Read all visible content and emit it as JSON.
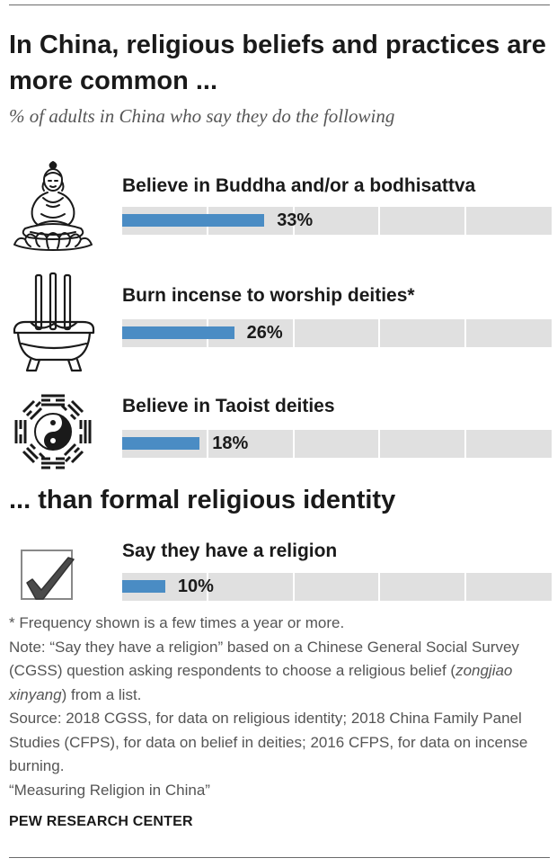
{
  "title": "In China, religious beliefs and practices are more common ...",
  "subtitle": "% of adults in China who say they do the following",
  "section_heading": "... than formal religious identity",
  "icons": [
    "buddha-icon",
    "incense-burner-icon",
    "yin-yang-bagua-icon",
    "checkmark-icon"
  ],
  "colors": {
    "bar": "#4a8cc4",
    "track": "#e0e0e0",
    "text": "#1a1a1a",
    "muted": "#555555"
  },
  "chart_data": {
    "type": "bar",
    "orientation": "horizontal",
    "categories": [
      "Believe in Buddha and/or a bodhisattva",
      "Burn incense to worship deities*",
      "Believe in Taoist deities",
      "Say they have a religion"
    ],
    "values": [
      33,
      26,
      18,
      10
    ],
    "value_labels": [
      "33%",
      "26%",
      "18%",
      "10%"
    ],
    "xlim": [
      0,
      100
    ],
    "grid": true,
    "title": "In China, religious beliefs and practices are more common ...",
    "subtitle": "% of adults in China who say they do the following"
  },
  "notes": {
    "footnote": "* Frequency shown is a few times a year or more.",
    "note_pre": "Note: “Say they have a religion” based on a Chinese General Social Survey (CGSS) question asking respondents to choose a religious belief (",
    "note_italic": "zongjiao xinyang",
    "note_post": ") from a list.",
    "source": "Source: 2018 CGSS, for data on religious identity; 2018 China Family Panel Studies (CFPS), for data on belief in deities; 2016 CFPS, for data on incense burning.",
    "report": "“Measuring Religion in China”"
  },
  "brand": "PEW RESEARCH CENTER"
}
